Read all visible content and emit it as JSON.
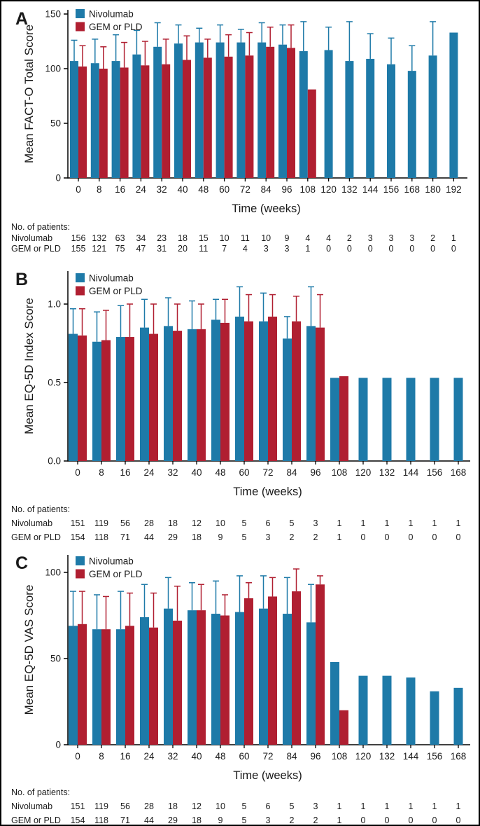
{
  "figure": {
    "panel_labels": [
      "A",
      "B",
      "C"
    ],
    "xlabel": "Time (weeks)",
    "patients_label": "No. of patients:"
  },
  "colors": {
    "nivolumab": "#1E7AA8",
    "gem_or_pld": "#B01F31",
    "axis": "#000000",
    "text": "#1a1a1a",
    "background": "#ffffff"
  },
  "legend": {
    "items": [
      {
        "label": "Nivolumab",
        "color_key": "nivolumab"
      },
      {
        "label": "GEM or PLD",
        "color_key": "gem_or_pld"
      }
    ]
  },
  "chart_data": [
    {
      "panel": "A",
      "type": "bar",
      "title": "",
      "ylabel": "Mean FACT-O Total Score",
      "xlabel": "Time (weeks)",
      "ylim": [
        0,
        150
      ],
      "yticks": [
        0,
        50,
        100,
        150
      ],
      "ytick_labels": [
        "0",
        "50",
        "100",
        "150"
      ],
      "grid": false,
      "legend_position": "top-left-inside",
      "categories": [
        0,
        8,
        16,
        24,
        32,
        40,
        48,
        60,
        72,
        84,
        96,
        108,
        120,
        132,
        144,
        156,
        168,
        180,
        192
      ],
      "series": [
        {
          "name": "Nivolumab",
          "color_key": "nivolumab",
          "values": [
            107,
            105,
            107,
            113,
            120,
            123,
            124,
            124,
            124,
            124,
            122,
            116,
            117,
            107,
            109,
            104,
            98,
            112,
            133
          ],
          "error_top": [
            126,
            127,
            131,
            135,
            142,
            140,
            137,
            140,
            136,
            142,
            140,
            143,
            138,
            143,
            132,
            128,
            121,
            143,
            null
          ]
        },
        {
          "name": "GEM or PLD",
          "color_key": "gem_or_pld",
          "values": [
            102,
            100,
            101,
            103,
            104,
            108,
            110,
            111,
            112,
            120,
            119,
            81,
            null,
            null,
            null,
            null,
            null,
            null,
            null
          ],
          "error_top": [
            121,
            120,
            124,
            125,
            127,
            130,
            127,
            131,
            133,
            138,
            140,
            null,
            null,
            null,
            null,
            null,
            null,
            null,
            null
          ]
        }
      ],
      "patients_table": {
        "label": "No. of patients:",
        "rows": [
          {
            "name": "Nivolumab",
            "counts": [
              156,
              132,
              63,
              34,
              23,
              18,
              15,
              10,
              11,
              10,
              9,
              4,
              4,
              2,
              3,
              3,
              3,
              2,
              1
            ]
          },
          {
            "name": "GEM or PLD",
            "counts": [
              155,
              121,
              75,
              47,
              31,
              20,
              11,
              7,
              4,
              3,
              3,
              1,
              0,
              0,
              0,
              0,
              0,
              0,
              0
            ]
          }
        ]
      }
    },
    {
      "panel": "B",
      "type": "bar",
      "title": "",
      "ylabel": "Mean EQ-5D Index Score",
      "xlabel": "Time (weeks)",
      "ylim": [
        0,
        1.2
      ],
      "yticks": [
        0,
        0.5,
        1.0
      ],
      "ytick_labels": [
        "0.0",
        "0.5",
        "1.0"
      ],
      "grid": false,
      "legend_position": "top-left-inside",
      "categories": [
        0,
        8,
        16,
        24,
        32,
        40,
        48,
        60,
        72,
        84,
        96,
        108,
        120,
        132,
        144,
        156,
        168
      ],
      "series": [
        {
          "name": "Nivolumab",
          "color_key": "nivolumab",
          "values": [
            0.81,
            0.76,
            0.79,
            0.85,
            0.86,
            0.84,
            0.9,
            0.92,
            0.89,
            0.78,
            0.86,
            0.53,
            0.53,
            0.53,
            0.53,
            0.53,
            0.53
          ],
          "error_top": [
            0.97,
            0.95,
            0.99,
            1.03,
            1.04,
            1.02,
            1.03,
            1.11,
            1.07,
            0.92,
            1.11,
            null,
            null,
            null,
            null,
            null,
            null
          ]
        },
        {
          "name": "GEM or PLD",
          "color_key": "gem_or_pld",
          "values": [
            0.8,
            0.77,
            0.79,
            0.81,
            0.83,
            0.84,
            0.88,
            0.89,
            0.92,
            0.89,
            0.85,
            0.54,
            null,
            null,
            null,
            null,
            null
          ],
          "error_top": [
            0.97,
            0.96,
            1.0,
            1.0,
            1.0,
            1.0,
            1.03,
            1.06,
            1.06,
            1.05,
            1.06,
            null,
            null,
            null,
            null,
            null,
            null
          ]
        }
      ],
      "patients_table": {
        "label": "No. of patients:",
        "rows": [
          {
            "name": "Nivolumab",
            "counts": [
              151,
              119,
              56,
              28,
              18,
              12,
              10,
              5,
              6,
              5,
              3,
              1,
              1,
              1,
              1,
              1,
              1
            ]
          },
          {
            "name": "GEM or PLD",
            "counts": [
              154,
              118,
              71,
              44,
              29,
              18,
              9,
              5,
              3,
              2,
              2,
              1,
              0,
              0,
              0,
              0,
              0
            ]
          }
        ]
      }
    },
    {
      "panel": "C",
      "type": "bar",
      "title": "",
      "ylabel": "Mean EQ-5D VAS Score",
      "xlabel": "Time (weeks)",
      "ylim": [
        0,
        110
      ],
      "yticks": [
        0,
        50,
        100
      ],
      "ytick_labels": [
        "0",
        "50",
        "100"
      ],
      "grid": false,
      "legend_position": "top-left-inside",
      "categories": [
        0,
        8,
        16,
        24,
        32,
        40,
        48,
        60,
        72,
        84,
        96,
        108,
        120,
        132,
        144,
        156,
        168
      ],
      "series": [
        {
          "name": "Nivolumab",
          "color_key": "nivolumab",
          "values": [
            69,
            67,
            67,
            74,
            79,
            78,
            76,
            77,
            79,
            76,
            71,
            48,
            40,
            40,
            39,
            31,
            33
          ],
          "error_top": [
            89,
            87,
            89,
            93,
            97,
            94,
            95,
            98,
            98,
            97,
            93,
            null,
            null,
            null,
            null,
            null,
            null
          ]
        },
        {
          "name": "GEM or PLD",
          "color_key": "gem_or_pld",
          "values": [
            70,
            67,
            69,
            68,
            72,
            78,
            75,
            85,
            86,
            89,
            93,
            20,
            null,
            null,
            null,
            null,
            null
          ],
          "error_top": [
            89,
            86,
            88,
            88,
            92,
            93,
            87,
            94,
            97,
            102,
            98,
            null,
            null,
            null,
            null,
            null,
            null
          ]
        }
      ],
      "patients_table": {
        "label": "No. of patients:",
        "rows": [
          {
            "name": "Nivolumab",
            "counts": [
              151,
              119,
              56,
              28,
              18,
              12,
              10,
              5,
              6,
              5,
              3,
              1,
              1,
              1,
              1,
              1,
              1
            ]
          },
          {
            "name": "GEM or PLD",
            "counts": [
              154,
              118,
              71,
              44,
              29,
              18,
              9,
              5,
              3,
              2,
              2,
              1,
              0,
              0,
              0,
              0,
              0
            ]
          }
        ]
      }
    }
  ]
}
